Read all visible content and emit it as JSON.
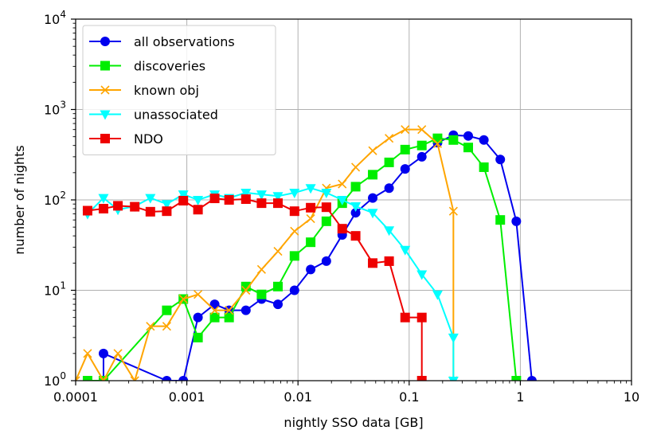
{
  "chart_data": {
    "type": "line",
    "xscale": "log",
    "yscale": "log",
    "xlim": [
      0.0001,
      10
    ],
    "ylim": [
      1,
      10000
    ],
    "xlabel": "nightly SSO data [GB]",
    "ylabel": "number of nights",
    "grid": true,
    "legend_position": "top-left",
    "x_ticks": [
      {
        "value": 0.0001,
        "label": "0.0001"
      },
      {
        "value": 0.001,
        "label": "0.001"
      },
      {
        "value": 0.01,
        "label": "0.01"
      },
      {
        "value": 0.1,
        "label": "0.1"
      },
      {
        "value": 1,
        "label": "1"
      },
      {
        "value": 10,
        "label": "10"
      }
    ],
    "y_ticks": [
      {
        "value": 1,
        "base": "10",
        "exp": "0"
      },
      {
        "value": 10,
        "base": "10",
        "exp": "1"
      },
      {
        "value": 100,
        "base": "10",
        "exp": "2"
      },
      {
        "value": 1000,
        "base": "10",
        "exp": "3"
      },
      {
        "value": 10000,
        "base": "10",
        "exp": "4"
      }
    ],
    "series": [
      {
        "name": "all observations",
        "color": "#0000ee",
        "marker": "circle",
        "points": [
          [
            0.000178,
            1
          ],
          [
            0.000178,
            2
          ],
          [
            0.00066,
            1
          ],
          [
            0.00093,
            1
          ],
          [
            0.00126,
            5
          ],
          [
            0.00178,
            7
          ],
          [
            0.0024,
            6
          ],
          [
            0.0034,
            6
          ],
          [
            0.0047,
            8
          ],
          [
            0.0066,
            7
          ],
          [
            0.0093,
            10
          ],
          [
            0.013,
            17
          ],
          [
            0.018,
            21
          ],
          [
            0.025,
            41
          ],
          [
            0.033,
            72
          ],
          [
            0.047,
            105
          ],
          [
            0.066,
            135
          ],
          [
            0.092,
            220
          ],
          [
            0.13,
            300
          ],
          [
            0.18,
            430
          ],
          [
            0.25,
            520
          ],
          [
            0.34,
            510
          ],
          [
            0.47,
            460
          ],
          [
            0.66,
            280
          ],
          [
            0.92,
            58
          ],
          [
            1.27,
            1
          ]
        ]
      },
      {
        "name": "discoveries",
        "color": "#00ee00",
        "marker": "square",
        "points": [
          [
            0.000128,
            1
          ],
          [
            0.000178,
            1
          ],
          [
            0.00066,
            6
          ],
          [
            0.00093,
            8
          ],
          [
            0.00126,
            3
          ],
          [
            0.00178,
            5
          ],
          [
            0.0024,
            5
          ],
          [
            0.0034,
            11
          ],
          [
            0.0047,
            9
          ],
          [
            0.0066,
            11
          ],
          [
            0.0093,
            24
          ],
          [
            0.013,
            34
          ],
          [
            0.018,
            58
          ],
          [
            0.025,
            92
          ],
          [
            0.033,
            140
          ],
          [
            0.047,
            190
          ],
          [
            0.066,
            260
          ],
          [
            0.092,
            360
          ],
          [
            0.13,
            400
          ],
          [
            0.18,
            480
          ],
          [
            0.25,
            460
          ],
          [
            0.34,
            380
          ],
          [
            0.47,
            230
          ],
          [
            0.66,
            60
          ],
          [
            0.92,
            1
          ]
        ]
      },
      {
        "name": "known obj",
        "color": "#ffa500",
        "marker": "x",
        "points": [
          [
            0.0001,
            1
          ],
          [
            0.000128,
            2
          ],
          [
            0.000178,
            1
          ],
          [
            0.00024,
            2
          ],
          [
            0.00034,
            1
          ],
          [
            0.00047,
            4
          ],
          [
            0.00066,
            4
          ],
          [
            0.00093,
            8
          ],
          [
            0.00126,
            9
          ],
          [
            0.00178,
            6
          ],
          [
            0.0024,
            6
          ],
          [
            0.0034,
            10
          ],
          [
            0.0047,
            17
          ],
          [
            0.0066,
            27
          ],
          [
            0.0093,
            45
          ],
          [
            0.013,
            62
          ],
          [
            0.018,
            135
          ],
          [
            0.025,
            150
          ],
          [
            0.033,
            230
          ],
          [
            0.047,
            350
          ],
          [
            0.066,
            480
          ],
          [
            0.092,
            600
          ],
          [
            0.13,
            600
          ],
          [
            0.18,
            420
          ],
          [
            0.25,
            75
          ],
          [
            0.25,
            1
          ]
        ]
      },
      {
        "name": "unassociated",
        "color": "#00ffff",
        "marker": "triangle-down",
        "points": [
          [
            0.000128,
            70
          ],
          [
            0.000178,
            105
          ],
          [
            0.00024,
            78
          ],
          [
            0.00034,
            85
          ],
          [
            0.00047,
            105
          ],
          [
            0.00066,
            90
          ],
          [
            0.00093,
            115
          ],
          [
            0.00126,
            100
          ],
          [
            0.00178,
            115
          ],
          [
            0.0024,
            105
          ],
          [
            0.0034,
            120
          ],
          [
            0.0047,
            115
          ],
          [
            0.0066,
            110
          ],
          [
            0.0093,
            120
          ],
          [
            0.013,
            135
          ],
          [
            0.018,
            120
          ],
          [
            0.025,
            100
          ],
          [
            0.033,
            85
          ],
          [
            0.047,
            72
          ],
          [
            0.066,
            46
          ],
          [
            0.092,
            28
          ],
          [
            0.13,
            15
          ],
          [
            0.18,
            9
          ],
          [
            0.25,
            3
          ],
          [
            0.25,
            1
          ]
        ]
      },
      {
        "name": "NDO",
        "color": "#ee0000",
        "marker": "square",
        "points": [
          [
            0.000128,
            76
          ],
          [
            0.000178,
            80
          ],
          [
            0.00024,
            86
          ],
          [
            0.00034,
            84
          ],
          [
            0.00047,
            74
          ],
          [
            0.00066,
            75
          ],
          [
            0.00093,
            98
          ],
          [
            0.00126,
            78
          ],
          [
            0.00178,
            104
          ],
          [
            0.0024,
            100
          ],
          [
            0.0034,
            102
          ],
          [
            0.0047,
            92
          ],
          [
            0.0066,
            92
          ],
          [
            0.0093,
            75
          ],
          [
            0.013,
            82
          ],
          [
            0.018,
            83
          ],
          [
            0.025,
            48
          ],
          [
            0.033,
            40
          ],
          [
            0.047,
            20
          ],
          [
            0.066,
            21
          ],
          [
            0.092,
            5
          ],
          [
            0.13,
            5
          ],
          [
            0.13,
            1
          ]
        ]
      }
    ]
  }
}
